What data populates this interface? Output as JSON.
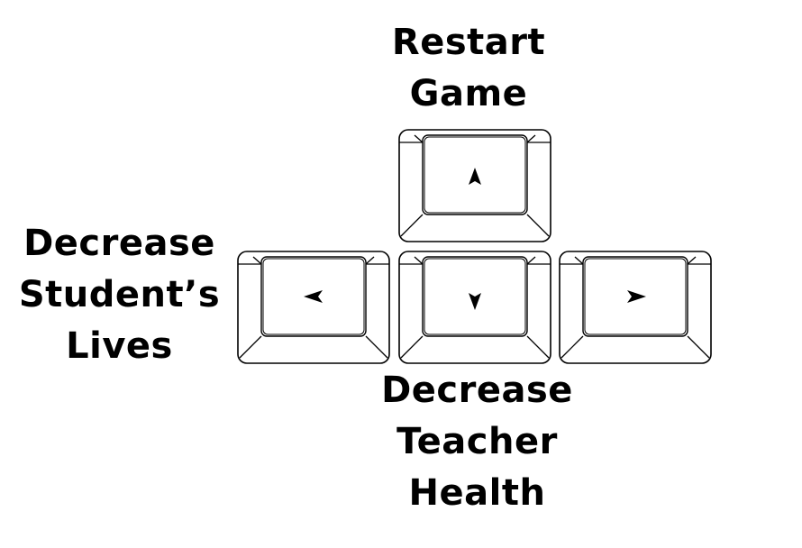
{
  "labels": {
    "up": [
      "Restart",
      "Game"
    ],
    "left": [
      "Decrease",
      "Student’s",
      "Lives"
    ],
    "down": [
      "Decrease",
      "Teacher",
      "Health"
    ]
  },
  "keys": [
    {
      "id": "up",
      "icon": "arrow-up-icon"
    },
    {
      "id": "left",
      "icon": "arrow-left-icon"
    },
    {
      "id": "down",
      "icon": "arrow-down-icon"
    },
    {
      "id": "right",
      "icon": "arrow-right-icon"
    }
  ],
  "colors": {
    "ink": "#000000",
    "background": "#ffffff"
  }
}
